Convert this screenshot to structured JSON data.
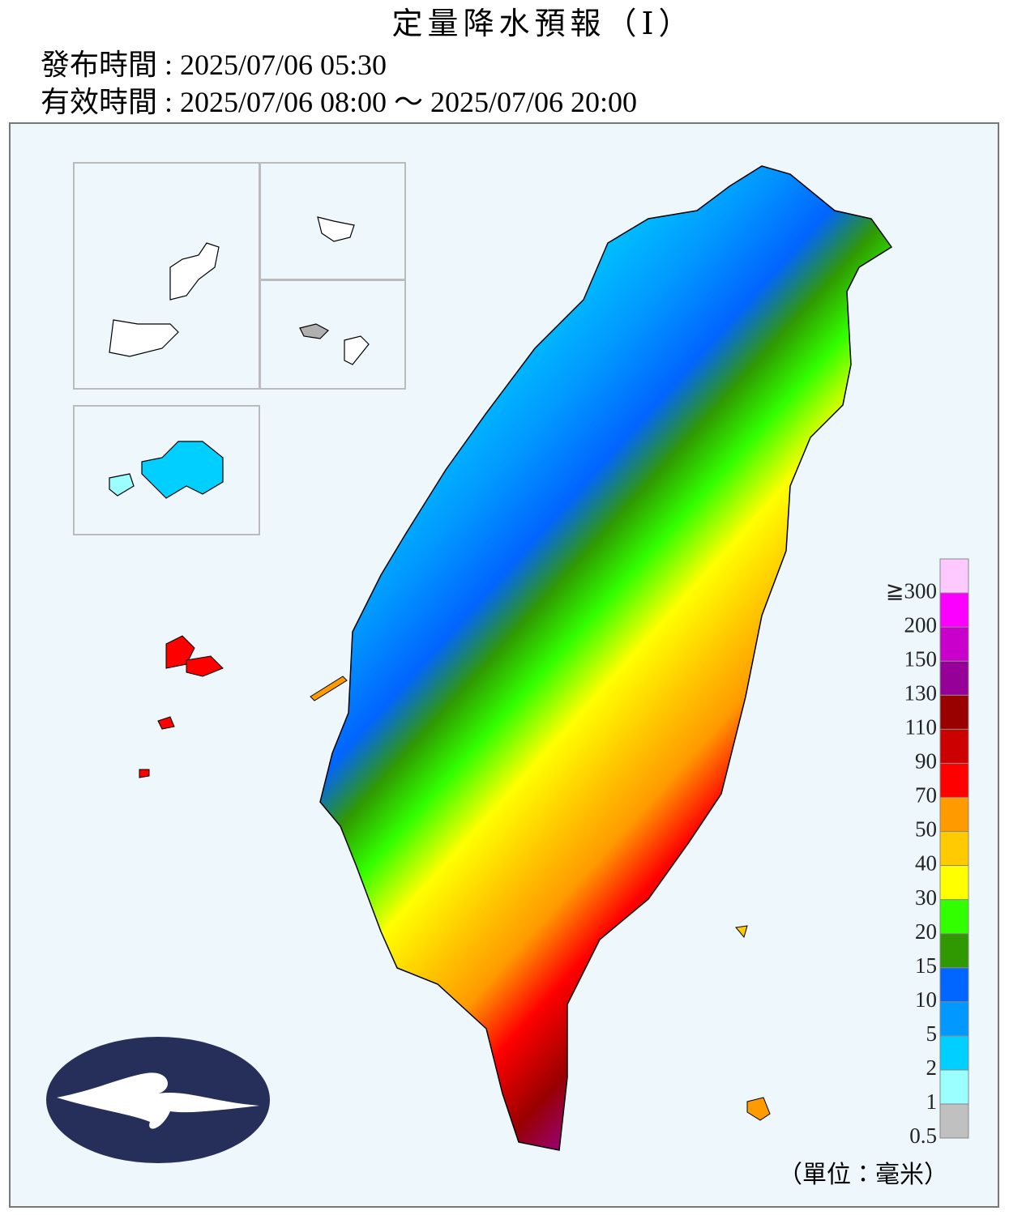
{
  "header": {
    "title": "定量降水預報（Ⅰ）",
    "issued": "發布時間 : 2025/07/06 05:30",
    "valid": "有效時間 : 2025/07/06 08:00 ～ 2025/07/06 20:00"
  },
  "legend": {
    "labels": [
      "0.5",
      "1",
      "2",
      "5",
      "10",
      "15",
      "20",
      "30",
      "40",
      "50",
      "70",
      "90",
      "110",
      "130",
      "150",
      "200",
      "≧300"
    ],
    "colors": [
      "#c0c0c0",
      "#9bffff",
      "#00cfff",
      "#0198ff",
      "#0165ff",
      "#309901",
      "#32ff00",
      "#ffff00",
      "#ffcb00",
      "#ff9a00",
      "#fe0000",
      "#cc0000",
      "#990000",
      "#960099",
      "#c900cc",
      "#fb00ff",
      "#fdc9ff"
    ],
    "unit": "（單位：毫米）"
  }
}
